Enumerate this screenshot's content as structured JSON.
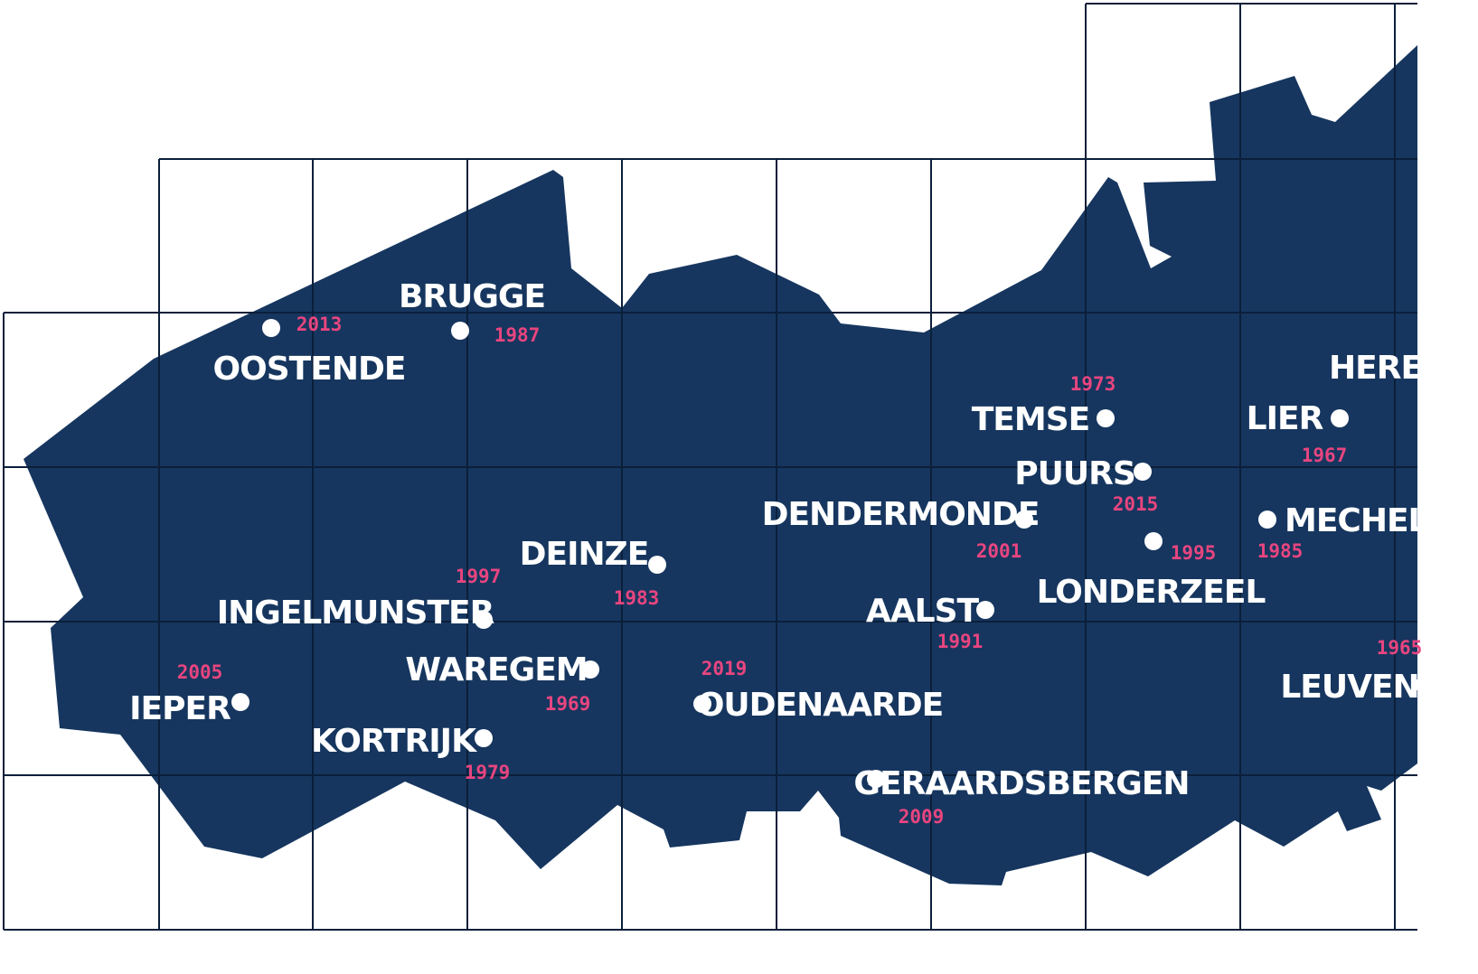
{
  "map": {
    "colors": {
      "land": "#16365f",
      "grid": "#0b1f3a",
      "dot": "#ffffff",
      "city": "#ffffff",
      "year": "#e8457f",
      "background": "#ffffff"
    },
    "places": [
      {
        "name": "OOSTENDE",
        "year": "2013"
      },
      {
        "name": "BRUGGE",
        "year": "1987"
      },
      {
        "name": "IEPER",
        "year": "2005"
      },
      {
        "name": "INGELMUNSTER",
        "year": "1997"
      },
      {
        "name": "DEINZE",
        "year": "1983"
      },
      {
        "name": "WAREGEM",
        "year": "1969"
      },
      {
        "name": "KORTRIJK",
        "year": "1979"
      },
      {
        "name": "OUDENAARDE",
        "year": "2019"
      },
      {
        "name": "GERAARDSBERGEN",
        "year": "2009"
      },
      {
        "name": "AALST",
        "year": "1991"
      },
      {
        "name": "DENDERMONDE",
        "year": "2001"
      },
      {
        "name": "TEMSE",
        "year": "1973"
      },
      {
        "name": "PUURS",
        "year": "2015"
      },
      {
        "name": "LONDERZEEL",
        "year": "1995"
      },
      {
        "name": "LIER",
        "year": "1967"
      },
      {
        "name": "MECHELE",
        "year": "1985"
      },
      {
        "name": "HEREN",
        "year": ""
      },
      {
        "name": "LEUVEN",
        "year": "1965"
      }
    ]
  }
}
